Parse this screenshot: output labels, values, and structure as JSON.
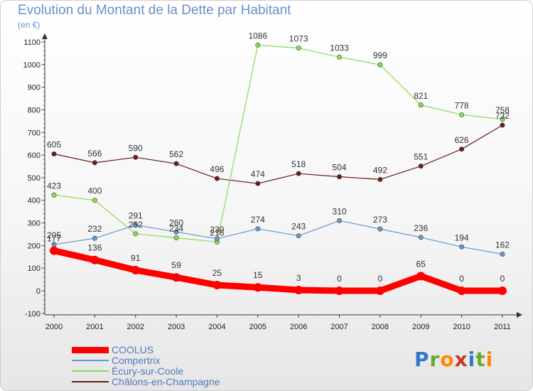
{
  "chart_data": {
    "type": "line",
    "title": "Evolution du Montant de la Dette par Habitant",
    "subtitle": "(en €)",
    "x": [
      "2000",
      "2001",
      "2002",
      "2003",
      "2004",
      "2005",
      "2006",
      "2007",
      "2008",
      "2009",
      "2010",
      "2011"
    ],
    "yticks": [
      "1100",
      "1000",
      "900",
      "800",
      "700",
      "600",
      "500",
      "400",
      "300",
      "200",
      "100",
      "0",
      "-100"
    ],
    "ylim": [
      -100,
      1100
    ],
    "grid": false,
    "legend_position": "bottom-left",
    "series": [
      {
        "name": "Châlons-en-Champagne",
        "color": "#6b1a1a",
        "values": [
          605,
          566,
          590,
          562,
          496,
          474,
          518,
          504,
          492,
          551,
          626,
          732
        ],
        "labels": [
          "605",
          "566",
          "590",
          "562",
          "496",
          "474",
          "518",
          "504",
          "492",
          "551",
          "626",
          "732"
        ]
      },
      {
        "name": "Écury-sur-Coole",
        "color": "#88dd55",
        "values": [
          423,
          400,
          252,
          234,
          216,
          1086,
          1073,
          1033,
          999,
          821,
          778,
          758
        ],
        "labels": [
          "423",
          "400",
          "252",
          "234",
          "216",
          "1086",
          "1073",
          "1033",
          "999",
          "821",
          "778",
          "758"
        ]
      },
      {
        "name": "Compertrix",
        "color": "#6699cc",
        "values": [
          205,
          232,
          291,
          260,
          230,
          274,
          243,
          310,
          273,
          236,
          194,
          162
        ],
        "labels": [
          "205",
          "232",
          "291",
          "260",
          "230",
          "274",
          "243",
          "310",
          "273",
          "236",
          "194",
          "162"
        ]
      },
      {
        "name": "COOLUS",
        "color": "#ff0000",
        "values": [
          177,
          136,
          91,
          59,
          25,
          15,
          3,
          0,
          0,
          65,
          0,
          0
        ],
        "labels": [
          "177",
          "136",
          "91",
          "59",
          "25",
          "15",
          "3",
          "0",
          "0",
          "65",
          "0",
          "0"
        ]
      }
    ],
    "legend": [
      "COOLUS",
      "Compertrix",
      "Écury-sur-Coole",
      "Châlons-en-Champagne"
    ]
  },
  "brand": {
    "letters": [
      "P",
      "r",
      "o",
      "x",
      "i",
      "t",
      "i"
    ],
    "colors": [
      "#3377cc",
      "#66aa33",
      "#ff8800",
      "#cc3322",
      "#3377cc",
      "#66aa33",
      "#ff8800"
    ]
  }
}
